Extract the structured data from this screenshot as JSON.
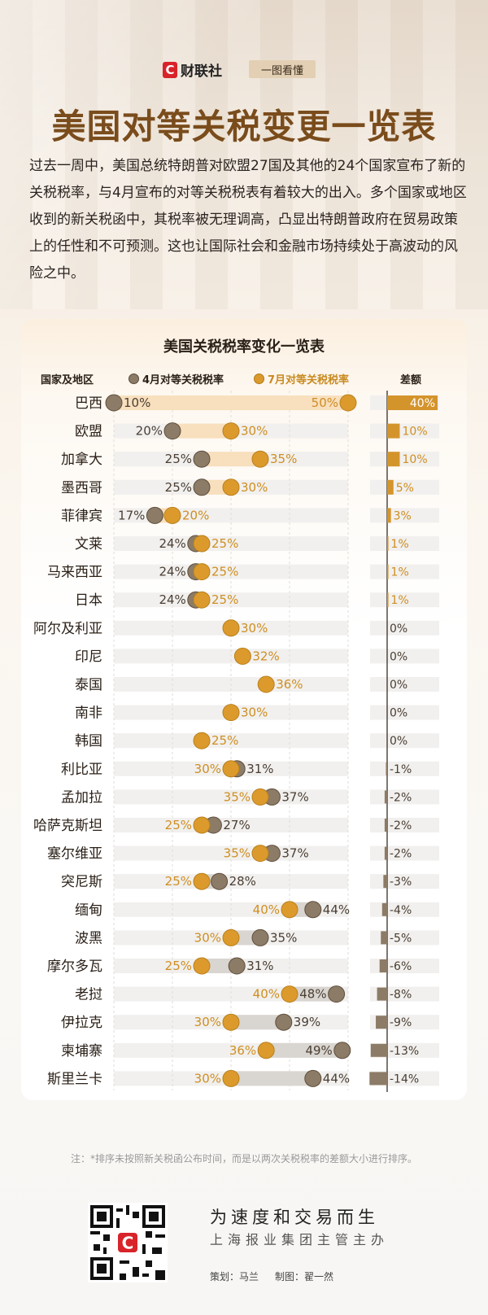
{
  "header": {
    "brand": "财联社",
    "brand_icon": "C",
    "tag": "一图看懂",
    "title": "美国对等关税变更一览表",
    "intro": "过去一周中，美国总统特朗普对欧盟27国及其他的24个国家宣布了新的关税税率，与4月宣布的对等关税税表有着较大的出入。多个国家或地区收到的新关税函中，其税率被无理调高，凸显出特朗普政府在贸易政策上的任性和不可预测。这也让国际社会和金融市场持续处于高波动的风险之中。"
  },
  "chart_data": {
    "type": "dumbbell",
    "title": "美国关税税率变化一览表",
    "category_header": "国家及地区",
    "diff_header": "差额",
    "xlim": [
      10,
      50
    ],
    "grid": true,
    "colors": {
      "april": "#8c7b66",
      "july": "#dc9a2c",
      "increase_band": "#f8dfbd",
      "decrease_band": "#d9d5d0",
      "diff_pos": "#d4942c",
      "diff_neg": "#8c7b66"
    },
    "series": [
      {
        "name": "4月对等关税税率",
        "key": "april"
      },
      {
        "name": "7月对等关税税率",
        "key": "july"
      }
    ],
    "rows": [
      {
        "country": "巴西",
        "april": 10,
        "july": 50,
        "diff": 40
      },
      {
        "country": "欧盟",
        "april": 20,
        "july": 30,
        "diff": 10
      },
      {
        "country": "加拿大",
        "april": 25,
        "july": 35,
        "diff": 10
      },
      {
        "country": "墨西哥",
        "april": 25,
        "july": 30,
        "diff": 5
      },
      {
        "country": "菲律宾",
        "april": 17,
        "july": 20,
        "diff": 3
      },
      {
        "country": "文莱",
        "april": 24,
        "july": 25,
        "diff": 1
      },
      {
        "country": "马来西亚",
        "april": 24,
        "july": 25,
        "diff": 1
      },
      {
        "country": "日本",
        "april": 24,
        "july": 25,
        "diff": 1
      },
      {
        "country": "阿尔及利亚",
        "april": 30,
        "july": 30,
        "diff": 0
      },
      {
        "country": "印尼",
        "april": 32,
        "july": 32,
        "diff": 0
      },
      {
        "country": "泰国",
        "april": 36,
        "july": 36,
        "diff": 0
      },
      {
        "country": "南非",
        "april": 30,
        "july": 30,
        "diff": 0
      },
      {
        "country": "韩国",
        "april": 25,
        "july": 25,
        "diff": 0
      },
      {
        "country": "利比亚",
        "april": 31,
        "july": 30,
        "diff": -1
      },
      {
        "country": "孟加拉",
        "april": 37,
        "july": 35,
        "diff": -2
      },
      {
        "country": "哈萨克斯坦",
        "april": 27,
        "july": 25,
        "diff": -2
      },
      {
        "country": "塞尔维亚",
        "april": 37,
        "july": 35,
        "diff": -2
      },
      {
        "country": "突尼斯",
        "april": 28,
        "july": 25,
        "diff": -3
      },
      {
        "country": "缅甸",
        "april": 44,
        "july": 40,
        "diff": -4
      },
      {
        "country": "波黑",
        "april": 35,
        "july": 30,
        "diff": -5
      },
      {
        "country": "摩尔多瓦",
        "april": 31,
        "july": 25,
        "diff": -6
      },
      {
        "country": "老挝",
        "april": 48,
        "july": 40,
        "diff": -8
      },
      {
        "country": "伊拉克",
        "april": 39,
        "july": 30,
        "diff": -9
      },
      {
        "country": "柬埔寨",
        "april": 49,
        "july": 36,
        "diff": -13
      },
      {
        "country": "斯里兰卡",
        "april": 44,
        "july": 30,
        "diff": -14
      }
    ]
  },
  "footer": {
    "note": "注：*排序未按照新关税函公布时间，而是以两次关税税率的差额大小进行排序。",
    "slogan": "为速度和交易而生",
    "sub_slogan": "上海报业集团主管主办",
    "planner": "策划：马兰",
    "designer": "制图：翟一然"
  }
}
